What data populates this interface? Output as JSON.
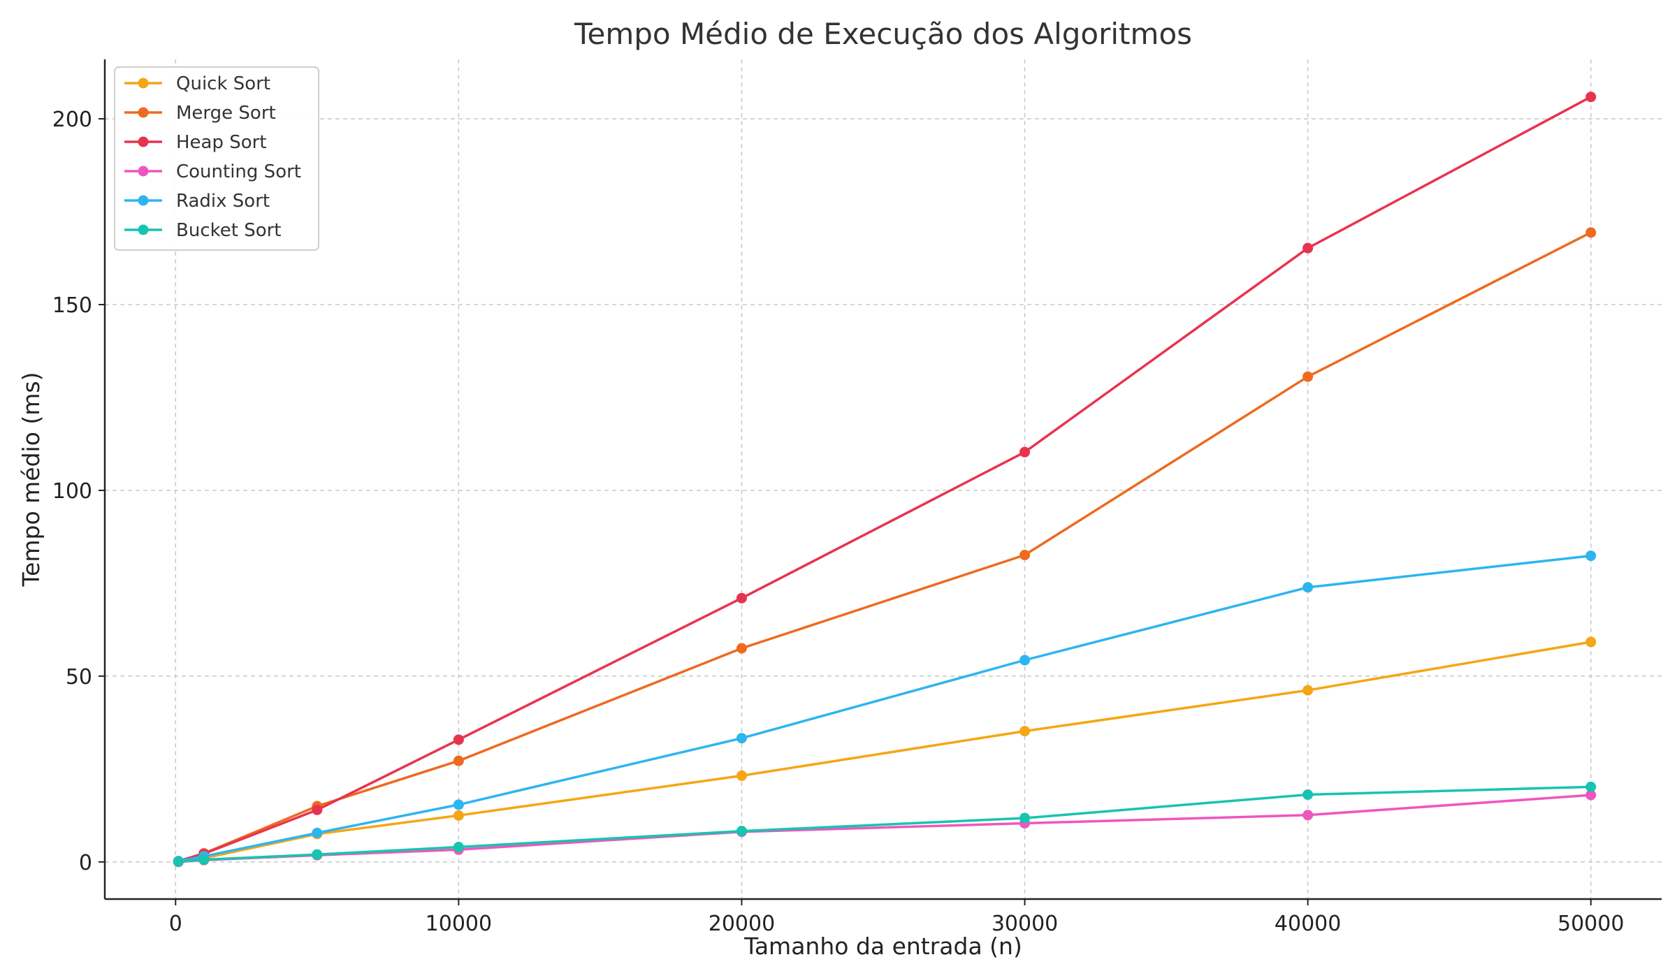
{
  "chart_data": {
    "type": "line",
    "title": "Tempo Médio de Execução dos Algoritmos",
    "xlabel": "Tamanho da entrada (n)",
    "ylabel": "Tempo médio (ms)",
    "xlim": [
      -2500,
      52500
    ],
    "ylim": [
      -10,
      216
    ],
    "xticks": [
      0,
      10000,
      20000,
      30000,
      40000,
      50000
    ],
    "yticks": [
      0,
      50,
      100,
      150,
      200
    ],
    "grid": true,
    "legend_position": "top-left",
    "x": [
      100,
      1000,
      5000,
      10000,
      20000,
      30000,
      40000,
      50000
    ],
    "series": [
      {
        "name": "Quick Sort",
        "color": "#f5a614",
        "values": [
          0.1,
          1.0,
          7.5,
          12.5,
          23.2,
          35.2,
          46.2,
          59.2
        ]
      },
      {
        "name": "Merge Sort",
        "color": "#ee6a1f",
        "values": [
          0.2,
          2.3,
          15.0,
          27.2,
          57.5,
          82.6,
          130.6,
          169.4
        ]
      },
      {
        "name": "Heap Sort",
        "color": "#e8334f",
        "values": [
          0.2,
          2.2,
          14.0,
          32.9,
          71.0,
          110.3,
          165.2,
          205.9
        ]
      },
      {
        "name": "Counting Sort",
        "color": "#ef56bf",
        "values": [
          0.0,
          0.5,
          1.8,
          3.3,
          8.1,
          10.4,
          12.6,
          18.0
        ]
      },
      {
        "name": "Radix Sort",
        "color": "#2db5f0",
        "values": [
          0.2,
          1.5,
          7.8,
          15.4,
          33.3,
          54.3,
          73.9,
          82.4
        ]
      },
      {
        "name": "Bucket Sort",
        "color": "#17c4b0",
        "values": [
          0.1,
          0.6,
          2.0,
          4.0,
          8.3,
          11.8,
          18.1,
          20.2
        ]
      }
    ]
  }
}
